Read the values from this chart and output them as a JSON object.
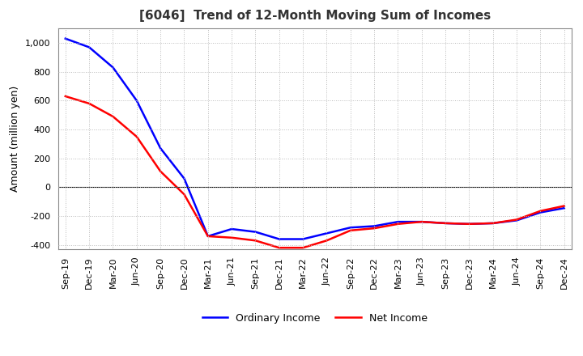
{
  "title": "[6046]  Trend of 12-Month Moving Sum of Incomes",
  "ylabel": "Amount (million yen)",
  "xlim_labels": [
    "Sep-19",
    "Dec-19",
    "Mar-20",
    "Jun-20",
    "Sep-20",
    "Dec-20",
    "Mar-21",
    "Jun-21",
    "Sep-21",
    "Dec-21",
    "Mar-22",
    "Jun-22",
    "Sep-22",
    "Dec-22",
    "Mar-23",
    "Jun-23",
    "Sep-23",
    "Dec-23",
    "Mar-24",
    "Jun-24",
    "Sep-24",
    "Dec-24"
  ],
  "ordinary_income": [
    1030,
    970,
    830,
    600,
    270,
    60,
    -340,
    -290,
    -310,
    -360,
    -360,
    -320,
    -280,
    -270,
    -240,
    -240,
    -250,
    -255,
    -250,
    -230,
    -175,
    -145
  ],
  "net_income": [
    630,
    580,
    490,
    350,
    110,
    -50,
    -340,
    -350,
    -370,
    -420,
    -420,
    -370,
    -300,
    -285,
    -255,
    -240,
    -250,
    -255,
    -250,
    -225,
    -165,
    -130
  ],
  "ordinary_income_color": "#0000ff",
  "net_income_color": "#ff0000",
  "ylim_min": -430,
  "ylim_max": 1100,
  "yticks": [
    -400,
    -200,
    0,
    200,
    400,
    600,
    800,
    1000
  ],
  "background_color": "#ffffff",
  "grid_color": "#bbbbbb",
  "legend_labels": [
    "Ordinary Income",
    "Net Income"
  ],
  "title_fontsize": 11,
  "axis_label_fontsize": 9,
  "tick_fontsize": 8,
  "legend_fontsize": 9,
  "line_width": 1.8
}
